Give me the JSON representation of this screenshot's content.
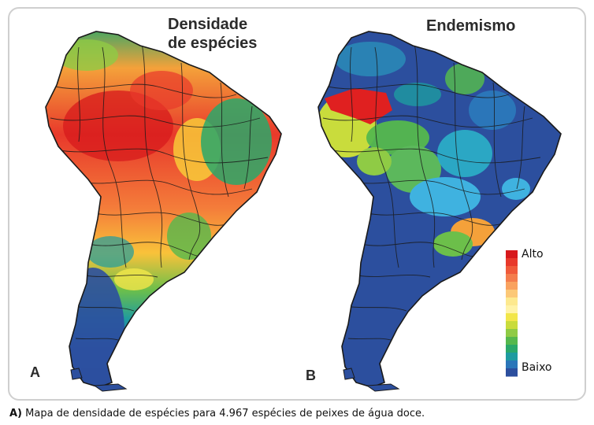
{
  "panels": [
    {
      "letter": "A",
      "title_line1": "Densidade",
      "title_line2": "de espécies"
    },
    {
      "letter": "B",
      "title_line1": "Endemismo",
      "title_line2": ""
    }
  ],
  "legend": {
    "high_label": "Alto",
    "low_label": "Baixo",
    "colors": [
      "#d7191c",
      "#e8392b",
      "#f05a3a",
      "#f47d4d",
      "#f9a25f",
      "#fcc877",
      "#fde98f",
      "#fff3a8",
      "#f2e64a",
      "#c9dc3c",
      "#8fcb45",
      "#55b84d",
      "#2aa86a",
      "#1e9ba0",
      "#2b76b9",
      "#2c4f9e"
    ]
  },
  "caption": {
    "label": "A)",
    "text": " Mapa de densidade de espécies para 4.967 espécies de peixes de água doce."
  },
  "colors": {
    "frame": "#cfcfcf",
    "outline": "#1a1a1a"
  }
}
